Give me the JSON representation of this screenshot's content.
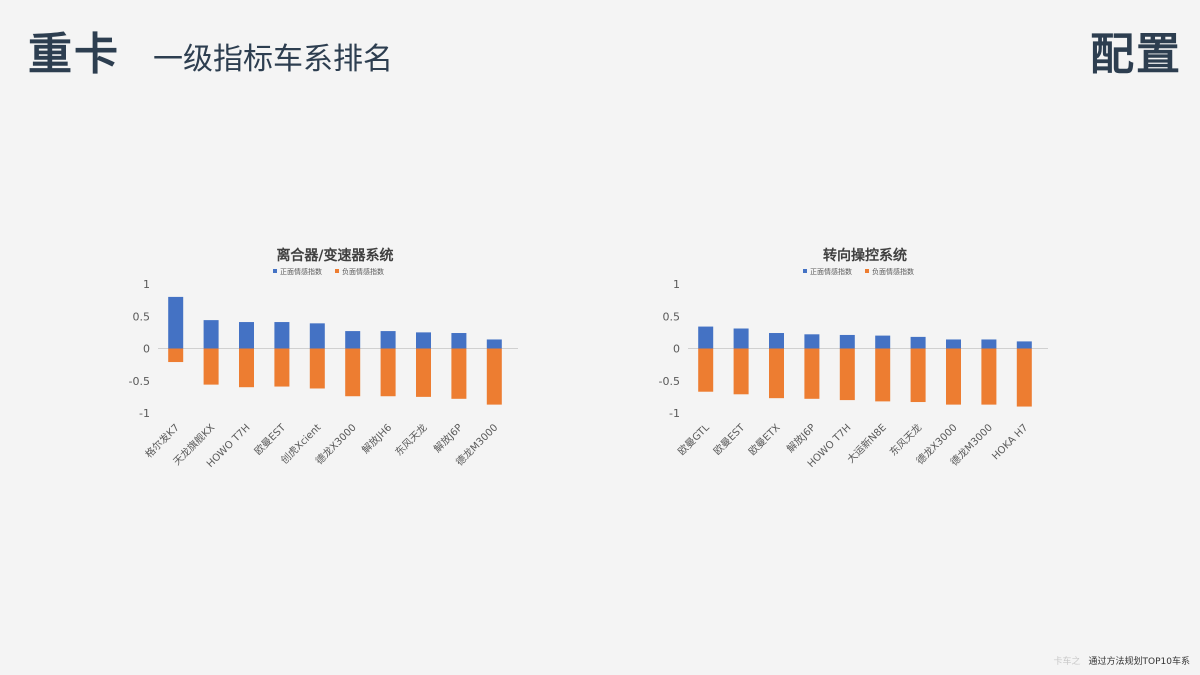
{
  "header": {
    "main_title": "重卡",
    "subtitle": "一级指标车系排名",
    "right_title": "配置"
  },
  "footer": {
    "watermark": "卡车之",
    "source": "通过方法规划TOP10车系"
  },
  "colors": {
    "positive": "#4472c4",
    "negative": "#ed7d31",
    "title": "#2d3e50"
  },
  "chart_data": [
    {
      "type": "bar",
      "title": "离合器/变速器系统",
      "legend_position": "top",
      "categories": [
        "格尔发K7",
        "天龙旗舰KX",
        "HOWO T7H",
        "欧曼EST",
        "创虎Xcient",
        "德龙X3000",
        "解放JH6",
        "东风天龙",
        "解放J6P",
        "德龙M3000"
      ],
      "series": [
        {
          "name": "正面情感指数",
          "values": [
            0.8,
            0.44,
            0.41,
            0.41,
            0.39,
            0.27,
            0.27,
            0.25,
            0.24,
            0.14
          ]
        },
        {
          "name": "负面情感指数",
          "values": [
            -0.21,
            -0.56,
            -0.6,
            -0.59,
            -0.62,
            -0.74,
            -0.74,
            -0.75,
            -0.78,
            -0.87
          ]
        }
      ],
      "yticks": [
        "1",
        "0.5",
        "0",
        "-0.5",
        "-1"
      ],
      "ylim": [
        -1,
        1
      ],
      "grid": false
    },
    {
      "type": "bar",
      "title": "转向操控系统",
      "legend_position": "top",
      "categories": [
        "欧曼GTL",
        "欧曼EST",
        "欧曼ETX",
        "解放J6P",
        "HOWO T7H",
        "大运新N8E",
        "东风天龙",
        "德龙X3000",
        "德龙M3000",
        "HOKA H7"
      ],
      "series": [
        {
          "name": "正面情感指数",
          "values": [
            0.34,
            0.31,
            0.24,
            0.22,
            0.21,
            0.2,
            0.18,
            0.14,
            0.14,
            0.11
          ]
        },
        {
          "name": "负面情感指数",
          "values": [
            -0.67,
            -0.71,
            -0.77,
            -0.78,
            -0.8,
            -0.82,
            -0.83,
            -0.87,
            -0.87,
            -0.9
          ]
        }
      ],
      "yticks": [
        "1",
        "0.5",
        "0",
        "-0.5",
        "-1"
      ],
      "ylim": [
        -1,
        1
      ],
      "grid": false
    }
  ]
}
